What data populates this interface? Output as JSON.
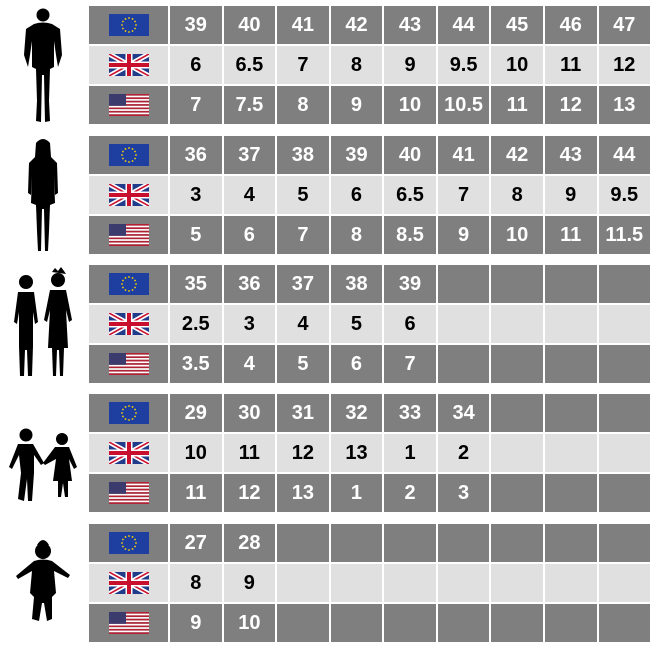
{
  "colors": {
    "dark_row": "#7f7f7f",
    "light_row": "#e0e0e0"
  },
  "flags": [
    "eu-flag-icon",
    "uk-flag-icon",
    "us-flag-icon"
  ],
  "groups": [
    {
      "name": "men",
      "rows": [
        [
          "39",
          "40",
          "41",
          "42",
          "43",
          "44",
          "45",
          "46",
          "47"
        ],
        [
          "6",
          "6.5",
          "7",
          "8",
          "9",
          "9.5",
          "10",
          "11",
          "12"
        ],
        [
          "7",
          "7.5",
          "8",
          "9",
          "10",
          "10.5",
          "11",
          "12",
          "13"
        ]
      ]
    },
    {
      "name": "women",
      "rows": [
        [
          "36",
          "37",
          "38",
          "39",
          "40",
          "41",
          "42",
          "43",
          "44"
        ],
        [
          "3",
          "4",
          "5",
          "6",
          "6.5",
          "7",
          "8",
          "9",
          "9.5"
        ],
        [
          "5",
          "6",
          "7",
          "8",
          "8.5",
          "9",
          "10",
          "11",
          "11.5"
        ]
      ]
    },
    {
      "name": "teens",
      "rows": [
        [
          "35",
          "36",
          "37",
          "38",
          "39",
          "",
          "",
          "",
          ""
        ],
        [
          "2.5",
          "3",
          "4",
          "5",
          "6",
          "",
          "",
          "",
          ""
        ],
        [
          "3.5",
          "4",
          "5",
          "6",
          "7",
          "",
          "",
          "",
          ""
        ]
      ]
    },
    {
      "name": "kids",
      "rows": [
        [
          "29",
          "30",
          "31",
          "32",
          "33",
          "34",
          "",
          "",
          ""
        ],
        [
          "10",
          "11",
          "12",
          "13",
          "1",
          "2",
          "",
          "",
          ""
        ],
        [
          "11",
          "12",
          "13",
          "1",
          "2",
          "3",
          "",
          "",
          ""
        ]
      ]
    },
    {
      "name": "toddler",
      "rows": [
        [
          "27",
          "28",
          "",
          "",
          "",
          "",
          "",
          "",
          ""
        ],
        [
          "8",
          "9",
          "",
          "",
          "",
          "",
          "",
          "",
          ""
        ],
        [
          "9",
          "10",
          "",
          "",
          "",
          "",
          "",
          "",
          ""
        ]
      ]
    }
  ]
}
